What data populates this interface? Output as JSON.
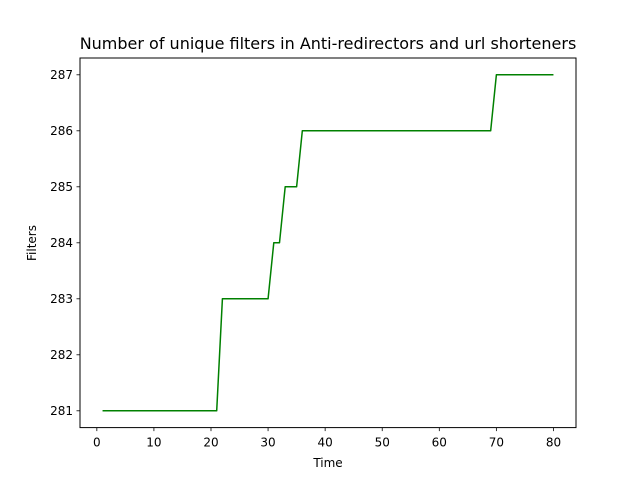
{
  "chart_data": {
    "type": "line",
    "title": "Number of unique filters in Anti-redirectors and url shorteners",
    "xlabel": "Time",
    "ylabel": "Filters",
    "xlim": [
      -2.95,
      83.95
    ],
    "ylim": [
      280.7,
      287.3
    ],
    "xticks": [
      0,
      10,
      20,
      30,
      40,
      50,
      60,
      70,
      80
    ],
    "yticks": [
      281,
      282,
      283,
      284,
      285,
      286,
      287
    ],
    "grid": false,
    "legend": "none",
    "series": [
      {
        "color": "#008000",
        "x": [
          1,
          2,
          3,
          4,
          5,
          6,
          7,
          8,
          9,
          10,
          11,
          12,
          13,
          14,
          15,
          16,
          17,
          18,
          19,
          20,
          21,
          22,
          23,
          24,
          25,
          26,
          27,
          28,
          29,
          30,
          31,
          32,
          33,
          34,
          35,
          36,
          37,
          38,
          39,
          40,
          41,
          42,
          43,
          44,
          45,
          46,
          47,
          48,
          49,
          50,
          51,
          52,
          53,
          54,
          55,
          56,
          57,
          58,
          59,
          60,
          61,
          62,
          63,
          64,
          65,
          66,
          67,
          68,
          69,
          70,
          71,
          72,
          73,
          74,
          75,
          76,
          77,
          78,
          79,
          80
        ],
        "y": [
          281,
          281,
          281,
          281,
          281,
          281,
          281,
          281,
          281,
          281,
          281,
          281,
          281,
          281,
          281,
          281,
          281,
          281,
          281,
          281,
          281,
          283,
          283,
          283,
          283,
          283,
          283,
          283,
          283,
          283,
          284,
          284,
          285,
          285,
          285,
          286,
          286,
          286,
          286,
          286,
          286,
          286,
          286,
          286,
          286,
          286,
          286,
          286,
          286,
          286,
          286,
          286,
          286,
          286,
          286,
          286,
          286,
          286,
          286,
          286,
          286,
          286,
          286,
          286,
          286,
          286,
          286,
          286,
          286,
          287,
          287,
          287,
          287,
          287,
          287,
          287,
          287,
          287,
          287,
          287
        ]
      }
    ]
  }
}
